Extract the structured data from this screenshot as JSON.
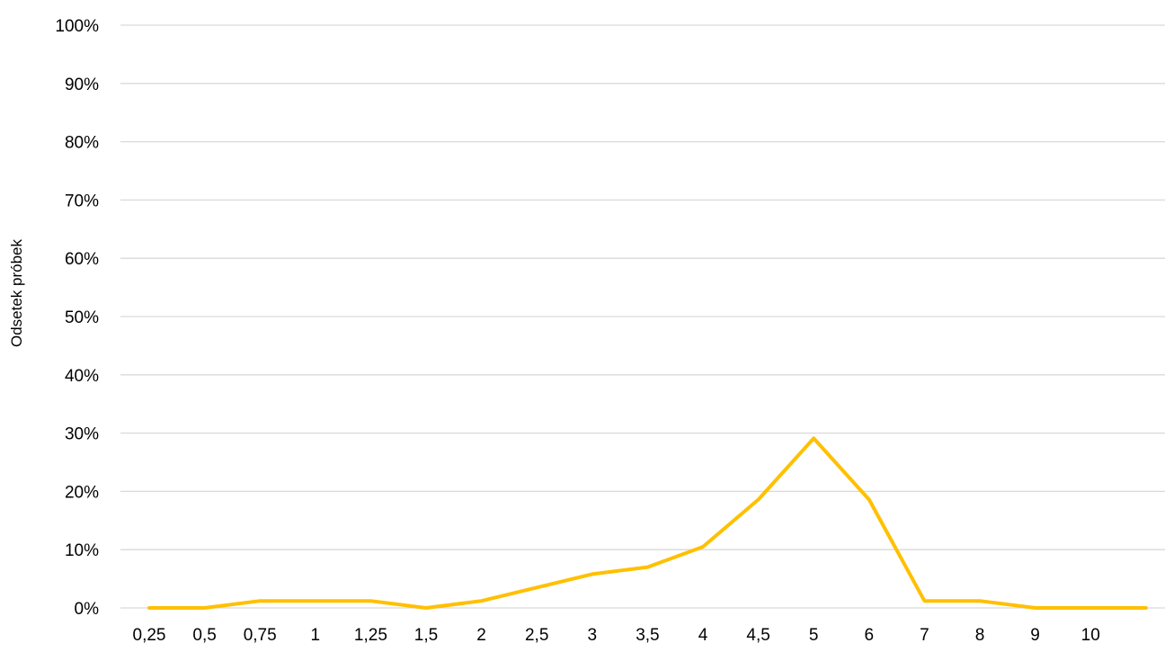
{
  "chart_data": {
    "type": "line",
    "title": "",
    "xlabel": "",
    "ylabel": "Odsetek próbek",
    "categories": [
      "0,25",
      "0,5",
      "0,75",
      "1",
      "1,25",
      "1,5",
      "2",
      "2,5",
      "3",
      "3,5",
      "4",
      "4,5",
      "5",
      "6",
      "7",
      "8",
      "9",
      "10",
      ""
    ],
    "series": [
      {
        "color": "#FFC000",
        "values": [
          0,
          0,
          1.2,
          1.2,
          1.2,
          0,
          1.2,
          3.5,
          5.8,
          7.0,
          10.5,
          18.6,
          29.1,
          18.6,
          1.2,
          1.2,
          0,
          0,
          0
        ]
      }
    ],
    "y_ticks": [
      "0%",
      "10%",
      "20%",
      "30%",
      "40%",
      "50%",
      "60%",
      "70%",
      "80%",
      "90%",
      "100%"
    ],
    "ylim": [
      0,
      100
    ],
    "grid": true,
    "legend": "none"
  }
}
